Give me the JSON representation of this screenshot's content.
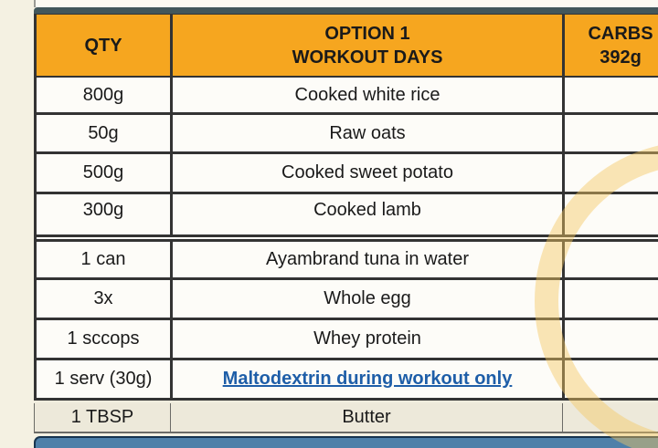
{
  "page": {
    "background_color": "#F4F1E2"
  },
  "table": {
    "header": {
      "qty": "QTY",
      "option_line1": "OPTION 1",
      "option_line2": "WORKOUT DAYS",
      "carbs_line1": "CARBS",
      "carbs_line2": "392g"
    },
    "rows": [
      {
        "qty": "800g",
        "item": "Cooked white rice",
        "carbs": ""
      },
      {
        "qty": "50g",
        "item": "Raw oats",
        "carbs": ""
      },
      {
        "qty": "500g",
        "item": "Cooked sweet potato",
        "carbs": ""
      },
      {
        "qty": "300g",
        "item": "Cooked lamb",
        "carbs": ""
      },
      {
        "qty": "1 can",
        "item": "Ayambrand tuna in water",
        "carbs": ""
      },
      {
        "qty": "3x",
        "item": "Whole egg",
        "carbs": ""
      },
      {
        "qty": "1 sccops",
        "item": "Whey protein",
        "carbs": ""
      },
      {
        "qty": "1 serv (30g)",
        "item": "Maltodextrin during workout only",
        "carbs": ""
      },
      {
        "qty": "1 TBSP",
        "item": "Butter",
        "carbs": ""
      }
    ],
    "colors": {
      "header_bg": "#F6A61F",
      "top_bar": "#42575B",
      "next_table_bar": "#4E80A9",
      "link_text": "#1E5EA8",
      "border_dark": "#333333",
      "watermark_gold": "#F3C862"
    }
  }
}
